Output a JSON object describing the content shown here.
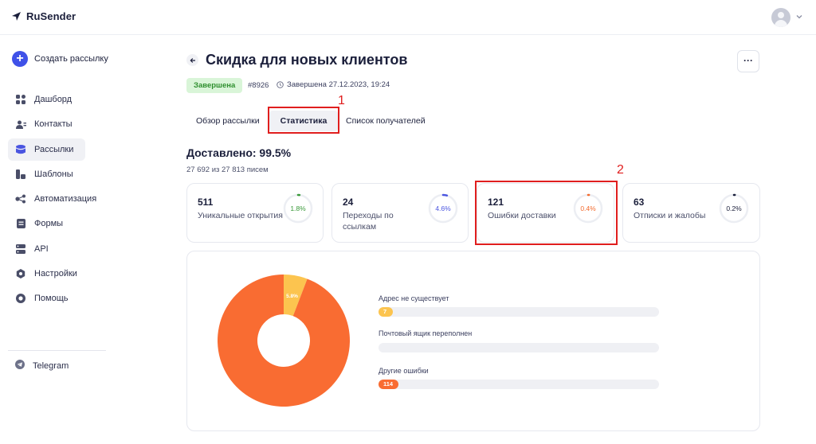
{
  "app": {
    "name": "RuSender"
  },
  "sidebar": {
    "create_label": "Создать рассылку",
    "items": [
      {
        "label": "Дашборд",
        "icon": "dashboard-icon"
      },
      {
        "label": "Контакты",
        "icon": "contacts-icon"
      },
      {
        "label": "Рассылки",
        "icon": "mailings-icon",
        "active": true
      },
      {
        "label": "Шаблоны",
        "icon": "templates-icon"
      },
      {
        "label": "Автоматизация",
        "icon": "automation-icon"
      },
      {
        "label": "Формы",
        "icon": "forms-icon"
      },
      {
        "label": "API",
        "icon": "api-icon"
      },
      {
        "label": "Настройки",
        "icon": "settings-icon"
      },
      {
        "label": "Помощь",
        "icon": "help-icon"
      }
    ],
    "telegram_label": "Telegram"
  },
  "header": {
    "title": "Скидка для новых клиентов",
    "more_label": "···",
    "status": "Завершена",
    "campaign_id": "#8926",
    "finished_text": "Завершена 27.12.2023, 19:24"
  },
  "tabs": [
    {
      "label": "Обзор рассылки"
    },
    {
      "label": "Статистика",
      "active": true
    },
    {
      "label": "Список получателей"
    }
  ],
  "annotations": {
    "mark1": "1",
    "mark2": "2"
  },
  "stats": {
    "delivered_title": "Доставлено: 99.5%",
    "delivered_sub": "27 692 из 27 813 писем",
    "cards": [
      {
        "value": "511",
        "label": "Уникальные открытия",
        "percent_text": "1.8%",
        "percent": 1.8,
        "color": "#3a9a3a"
      },
      {
        "value": "24",
        "label": "Переходы по ссылкам",
        "percent_text": "4.6%",
        "percent": 4.6,
        "color": "#4a55e0"
      },
      {
        "value": "121",
        "label": "Ошибки доставки",
        "percent_text": "0.4%",
        "percent": 0.4,
        "color": "#f36b2f"
      },
      {
        "value": "63",
        "label": "Отписки и жалобы",
        "percent_text": "0.2%",
        "percent": 0.2,
        "color": "#1b1f3b"
      }
    ]
  },
  "errors_chart": {
    "donut_labels": [
      "5.8%",
      "94.2%"
    ],
    "items": [
      {
        "label": "Адрес не существует",
        "value": "7",
        "count": 7,
        "color": "#fcc44f"
      },
      {
        "label": "Почтовый ящик переполнен",
        "value": "",
        "count": 0,
        "color": "#fcc44f"
      },
      {
        "label": "Другие ошибки",
        "value": "114",
        "count": 114,
        "color": "#f96c32"
      }
    ]
  },
  "chart_data": {
    "type": "pie",
    "categories": [
      "Адрес не существует",
      "Другие ошибки"
    ],
    "values": [
      5.8,
      94.2
    ],
    "colors": [
      "#fcc44f",
      "#f96c32"
    ]
  }
}
